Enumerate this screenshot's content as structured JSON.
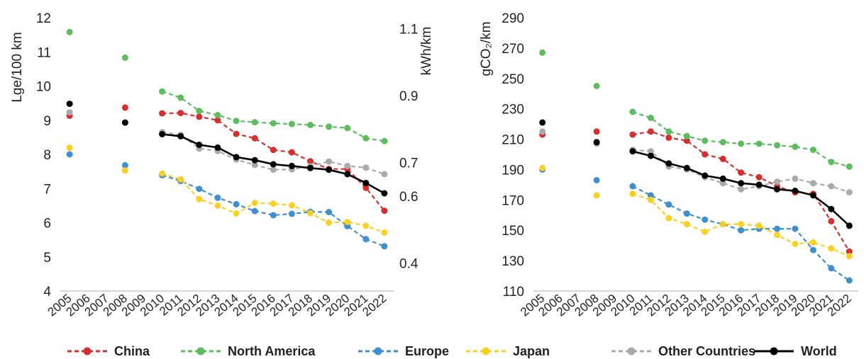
{
  "chart_data": [
    {
      "type": "line",
      "x": [
        "2005",
        "2006",
        "2007",
        "2008",
        "2009",
        "2010",
        "2011",
        "2012",
        "2013",
        "2014",
        "2015",
        "2016",
        "2017",
        "2018",
        "2019",
        "2020",
        "2021",
        "2022"
      ],
      "ylabel": "Lge/100 km",
      "ylim": [
        4,
        12
      ],
      "yticks": [
        "4",
        "5",
        "6",
        "7",
        "8",
        "9",
        "10",
        "11",
        "12"
      ],
      "y2label": "kWh/km",
      "y2lim": [
        0.3162,
        1.1329
      ],
      "y2ticks": [
        "0.4",
        "0.6",
        "0.7",
        "0.9",
        "1.1"
      ],
      "grid": false,
      "series": [
        {
          "name": "China",
          "values": [
            9.13,
            null,
            null,
            9.37,
            null,
            9.2,
            9.21,
            9.1,
            9.0,
            8.6,
            8.47,
            8.13,
            8.06,
            7.8,
            7.57,
            7.57,
            7.02,
            6.35
          ]
        },
        {
          "name": "North America",
          "values": [
            11.58,
            null,
            null,
            10.83,
            null,
            9.84,
            9.66,
            9.27,
            9.15,
            8.98,
            8.94,
            8.91,
            8.89,
            8.86,
            8.81,
            8.77,
            8.47,
            8.39
          ]
        },
        {
          "name": "Europe",
          "values": [
            8.0,
            null,
            null,
            7.68,
            null,
            7.39,
            7.22,
            6.99,
            6.73,
            6.54,
            6.34,
            6.22,
            6.26,
            6.32,
            6.31,
            5.9,
            5.52,
            5.31
          ]
        },
        {
          "name": "Japan",
          "values": [
            8.19,
            null,
            null,
            7.53,
            null,
            7.44,
            7.27,
            6.69,
            6.5,
            6.27,
            6.58,
            6.56,
            6.51,
            6.28,
            6.0,
            6.02,
            5.91,
            5.71
          ]
        },
        {
          "name": "Other Countries",
          "values": [
            9.23,
            null,
            null,
            8.93,
            null,
            8.65,
            8.57,
            8.17,
            8.1,
            7.85,
            7.69,
            7.55,
            7.56,
            7.65,
            7.79,
            7.66,
            7.61,
            7.42
          ]
        },
        {
          "name": "World",
          "values": [
            9.48,
            null,
            null,
            8.93,
            null,
            8.59,
            8.53,
            8.28,
            8.2,
            7.92,
            7.83,
            7.71,
            7.66,
            7.6,
            7.55,
            7.42,
            7.16,
            6.86
          ]
        }
      ]
    },
    {
      "type": "line",
      "x": [
        "2005",
        "2006",
        "2007",
        "2008",
        "2009",
        "2010",
        "2011",
        "2012",
        "2013",
        "2014",
        "2015",
        "2016",
        "2017",
        "2018",
        "2019",
        "2020",
        "2021",
        "2022"
      ],
      "ylabel": "gCO₂/km",
      "ylim": [
        110,
        290
      ],
      "yticks": [
        "110",
        "130",
        "150",
        "170",
        "190",
        "210",
        "230",
        "250",
        "270",
        "290"
      ],
      "grid": false,
      "series": [
        {
          "name": "China",
          "values": [
            213,
            null,
            null,
            215,
            null,
            213,
            215,
            211,
            209,
            200,
            197,
            188,
            185,
            179,
            175,
            174,
            156,
            136
          ]
        },
        {
          "name": "North America",
          "values": [
            267,
            null,
            null,
            245,
            null,
            228,
            224,
            215,
            212,
            209,
            208,
            207,
            207,
            206,
            205,
            203,
            195,
            192
          ]
        },
        {
          "name": "Europe",
          "values": [
            190,
            null,
            null,
            183,
            null,
            179,
            173,
            167,
            161,
            157,
            154,
            150,
            151,
            151,
            151,
            137,
            125,
            117
          ]
        },
        {
          "name": "Japan",
          "values": [
            191,
            null,
            null,
            173,
            null,
            174,
            170,
            158,
            154,
            149,
            154,
            154,
            153,
            147,
            141,
            142,
            138,
            133
          ]
        },
        {
          "name": "Other Countries",
          "values": [
            215,
            null,
            null,
            207,
            null,
            203,
            202,
            192,
            190,
            185,
            181,
            177,
            179,
            182,
            184,
            181,
            179,
            175
          ]
        },
        {
          "name": "World",
          "values": [
            221,
            null,
            null,
            208,
            null,
            202,
            199,
            194,
            191,
            186,
            184,
            181,
            180,
            177,
            176,
            173,
            164,
            153
          ]
        }
      ]
    }
  ],
  "legend": {
    "position": "bottom",
    "items": [
      {
        "label": "China",
        "color": "#d62f2f",
        "style": "dashed"
      },
      {
        "label": "North America",
        "color": "#5cbd5f",
        "style": "dashed"
      },
      {
        "label": "Europe",
        "color": "#3f8fcf",
        "style": "dashed"
      },
      {
        "label": "Japan",
        "color": "#fbd024",
        "style": "dashed"
      },
      {
        "label": "Other Countries",
        "color": "#aaaaaa",
        "style": "dashed"
      },
      {
        "label": "World",
        "color": "#000000",
        "style": "solid"
      }
    ]
  }
}
